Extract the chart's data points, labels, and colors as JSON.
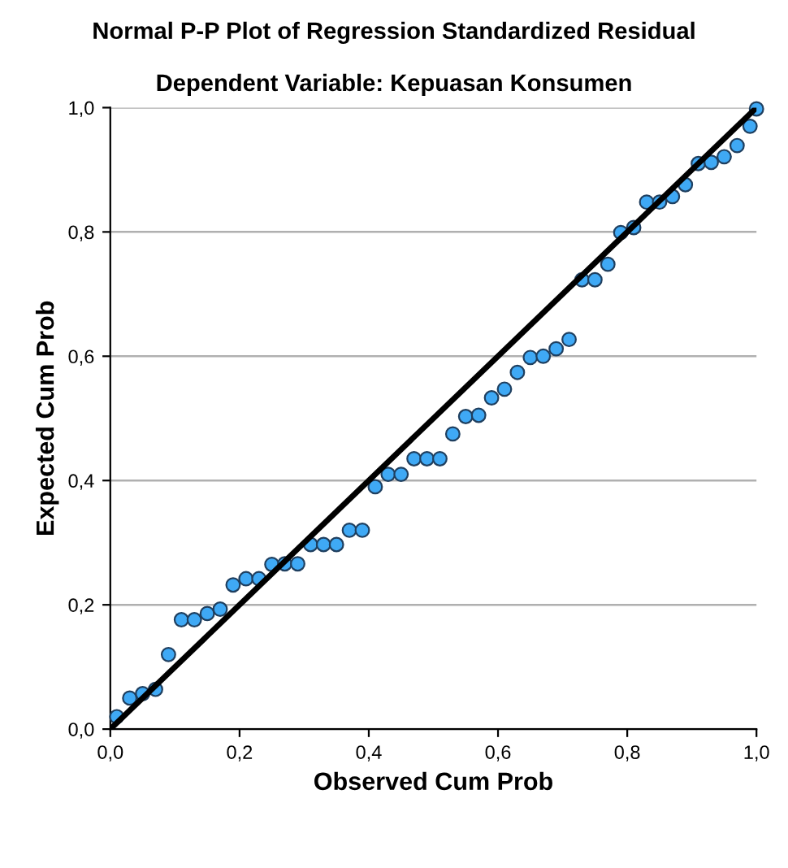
{
  "chart_data": {
    "type": "scatter",
    "title": "Normal P-P Plot of Regression Standardized Residual",
    "subtitle": "Dependent Variable: Kepuasan Konsumen",
    "xlabel": "Observed Cum Prob",
    "ylabel": "Expected Cum Prob",
    "series": [
      {
        "color": "#3fa9f5",
        "marker": "circle",
        "x": [
          0.01,
          0.03,
          0.05,
          0.07,
          0.09,
          0.11,
          0.13,
          0.15,
          0.17,
          0.19,
          0.21,
          0.23,
          0.25,
          0.27,
          0.29,
          0.31,
          0.33,
          0.35,
          0.37,
          0.39,
          0.41,
          0.43,
          0.45,
          0.47,
          0.49,
          0.51,
          0.53,
          0.55,
          0.57,
          0.59,
          0.61,
          0.63,
          0.65,
          0.67,
          0.69,
          0.71,
          0.73,
          0.75,
          0.77,
          0.79,
          0.81,
          0.83,
          0.85,
          0.87,
          0.89,
          0.91,
          0.93,
          0.95,
          0.97,
          0.99,
          1.0
        ],
        "values": [
          0.02,
          0.05,
          0.057,
          0.064,
          0.12,
          0.176,
          0.176,
          0.186,
          0.193,
          0.232,
          0.242,
          0.242,
          0.265,
          0.266,
          0.266,
          0.297,
          0.297,
          0.297,
          0.32,
          0.32,
          0.39,
          0.41,
          0.41,
          0.435,
          0.435,
          0.435,
          0.475,
          0.503,
          0.505,
          0.533,
          0.547,
          0.574,
          0.598,
          0.6,
          0.612,
          0.627,
          0.723,
          0.723,
          0.748,
          0.799,
          0.807,
          0.848,
          0.848,
          0.857,
          0.876,
          0.91,
          0.912,
          0.921,
          0.939,
          0.97,
          0.998
        ]
      },
      {
        "type": "line",
        "color": "#000000",
        "marker": "none",
        "x": [
          0,
          1
        ],
        "values": [
          0,
          1
        ]
      }
    ],
    "xlim": [
      0,
      1
    ],
    "ylim": [
      0,
      1
    ],
    "xticks": [
      {
        "value": 0,
        "label": "0,0"
      },
      {
        "value": 0.2,
        "label": "0,2"
      },
      {
        "value": 0.4,
        "label": "0,4"
      },
      {
        "value": 0.6,
        "label": "0,6"
      },
      {
        "value": 0.8,
        "label": "0,8"
      },
      {
        "value": 1,
        "label": "1,0"
      }
    ],
    "yticks": [
      {
        "value": 0,
        "label": "0,0"
      },
      {
        "value": 0.2,
        "label": "0,2"
      },
      {
        "value": 0.4,
        "label": "0,4"
      },
      {
        "value": 0.6,
        "label": "0,6"
      },
      {
        "value": 0.8,
        "label": "0,8"
      },
      {
        "value": 1,
        "label": "1,0"
      }
    ],
    "grid": "y",
    "legend": false
  }
}
